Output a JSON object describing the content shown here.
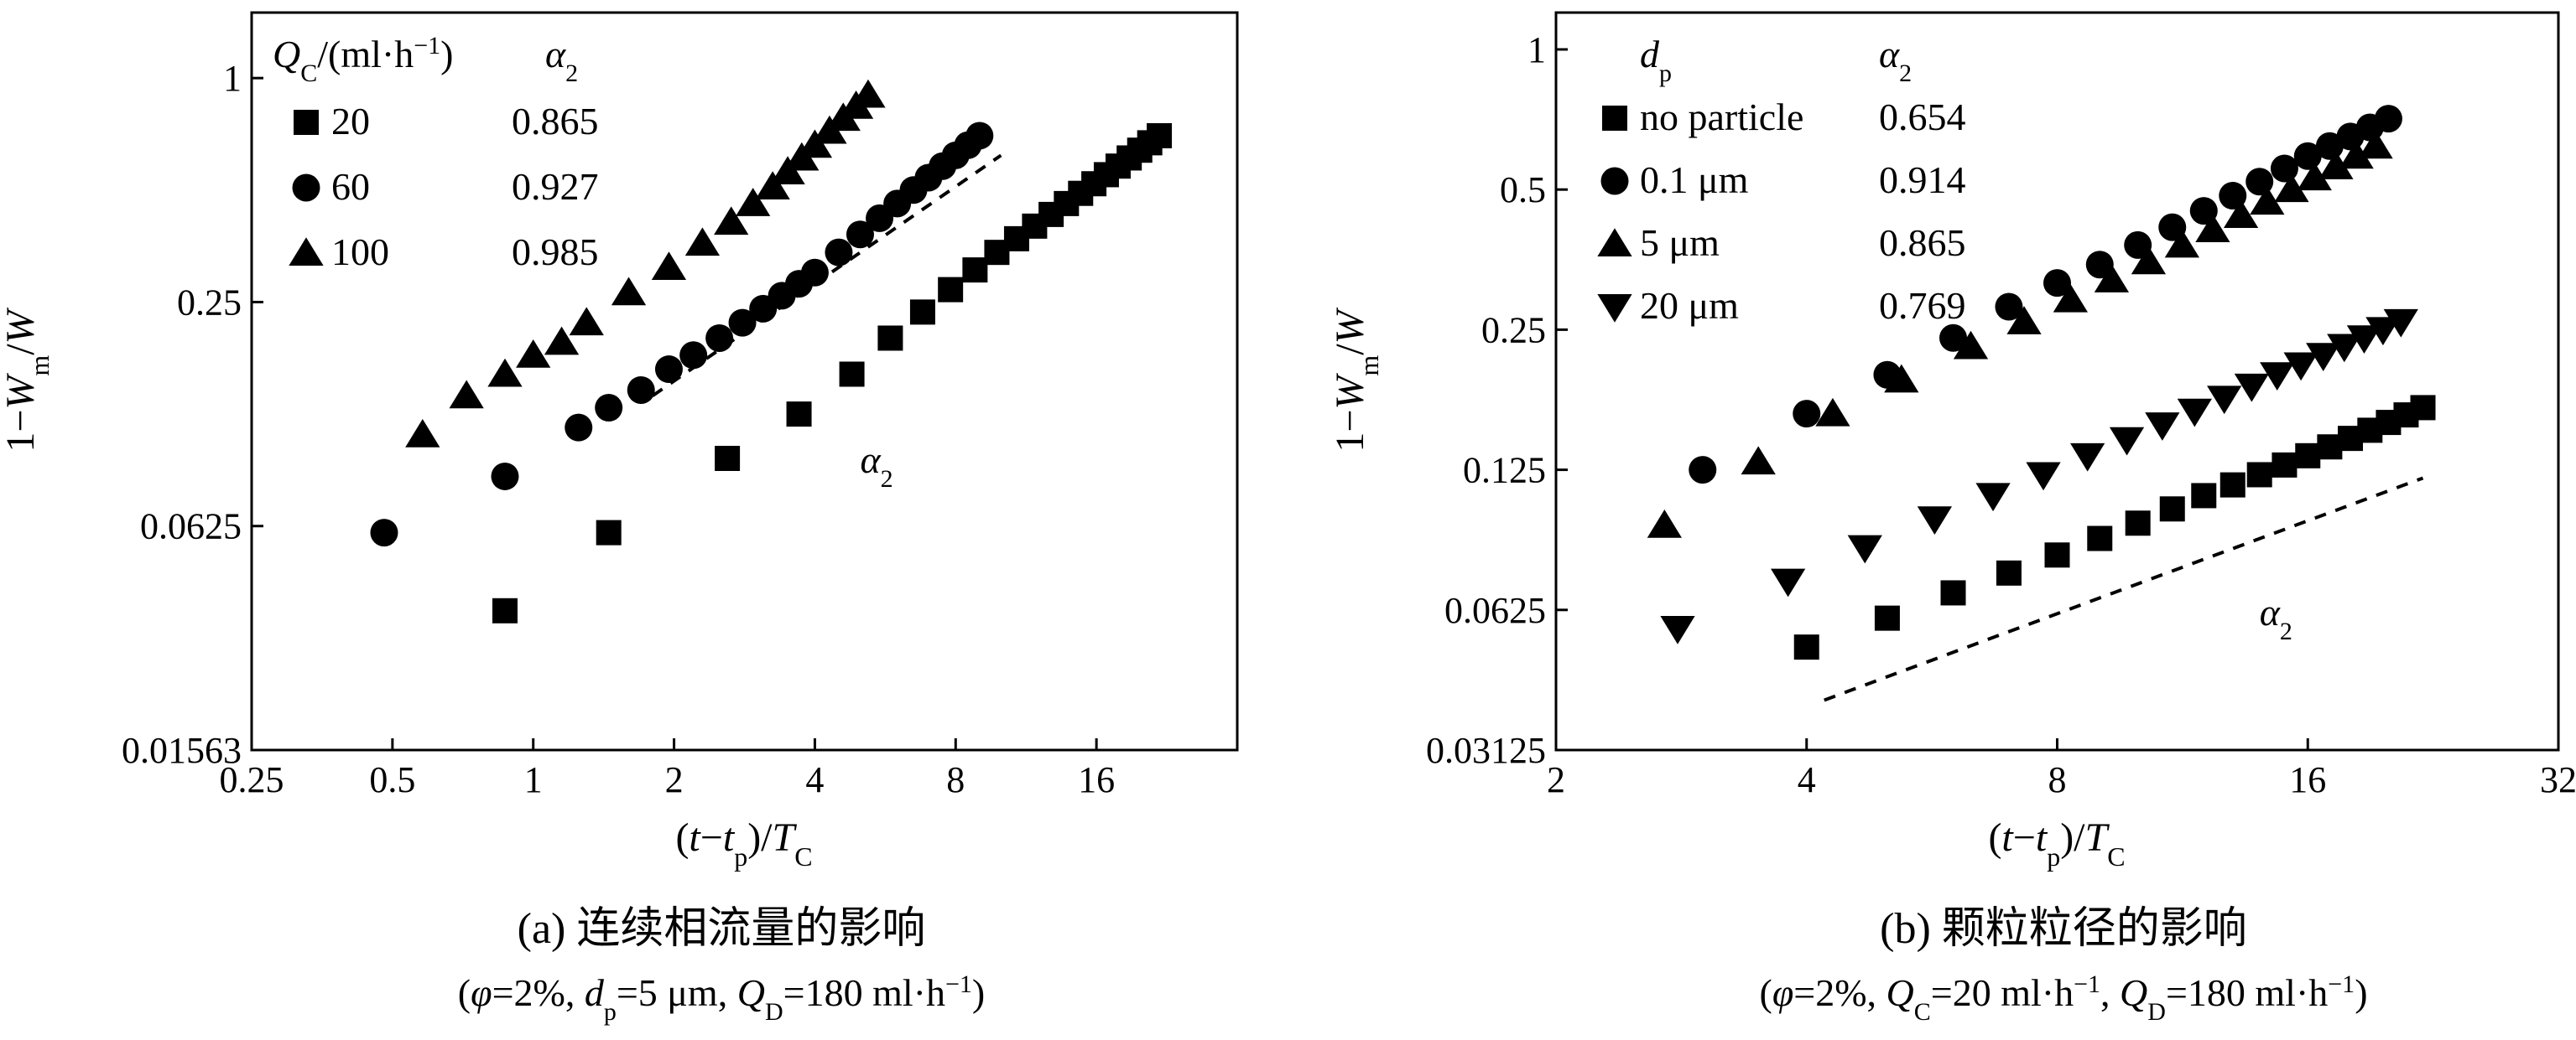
{
  "chart_data": [
    {
      "type": "scatter",
      "panel": "a",
      "x_scale": "log2",
      "y_scale": "log2",
      "xlim": [
        0.25,
        32
      ],
      "ylim": [
        0.015625,
        1.5
      ],
      "x_ticks": [
        0.25,
        0.5,
        1,
        2,
        4,
        8,
        16
      ],
      "x_tick_labels": [
        "0.25",
        "0.5",
        "1",
        "2",
        "4",
        "8",
        "16"
      ],
      "y_ticks": [
        0.015625,
        0.0625,
        0.25,
        1
      ],
      "y_tick_labels": [
        "0.01563",
        "0.0625",
        "0.25",
        "1"
      ],
      "xlabel": "(t−tp)/TC",
      "ylabel": "1−Wm/W",
      "legend_header": [
        "QC/(ml·h−1)",
        "α2"
      ],
      "series": [
        {
          "name": "20",
          "alpha2": "0.865",
          "marker": "square",
          "x": [
            0.87,
            1.45,
            2.6,
            3.7,
            4.8,
            5.8,
            6.8,
            7.8,
            8.8,
            9.8,
            10.8,
            11.8,
            12.8,
            13.8,
            14.8,
            15.8,
            16.8,
            17.8,
            18.8,
            19.8,
            20.8,
            21.8
          ],
          "y": [
            0.037,
            0.06,
            0.095,
            0.125,
            0.16,
            0.2,
            0.235,
            0.27,
            0.305,
            0.34,
            0.37,
            0.4,
            0.43,
            0.46,
            0.49,
            0.52,
            0.55,
            0.58,
            0.61,
            0.64,
            0.67,
            0.7
          ]
        },
        {
          "name": "60",
          "alpha2": "0.927",
          "marker": "circle",
          "x": [
            0.48,
            0.87,
            1.25,
            1.45,
            1.7,
            1.95,
            2.2,
            2.5,
            2.8,
            3.1,
            3.4,
            3.7,
            4,
            4.5,
            5,
            5.5,
            6,
            6.5,
            7,
            7.5,
            8,
            8.5,
            9
          ],
          "y": [
            0.06,
            0.085,
            0.115,
            0.13,
            0.145,
            0.165,
            0.18,
            0.2,
            0.22,
            0.24,
            0.26,
            0.28,
            0.3,
            0.34,
            0.38,
            0.42,
            0.46,
            0.5,
            0.54,
            0.58,
            0.62,
            0.66,
            0.7
          ]
        },
        {
          "name": "100",
          "alpha2": "0.985",
          "marker": "triangle",
          "x": [
            0.58,
            0.72,
            0.87,
            1.0,
            1.15,
            1.3,
            1.6,
            1.95,
            2.3,
            2.65,
            2.95,
            3.25,
            3.5,
            3.75,
            4.0,
            4.3,
            4.6,
            4.9,
            5.2
          ],
          "y": [
            0.11,
            0.14,
            0.16,
            0.18,
            0.195,
            0.22,
            0.265,
            0.31,
            0.36,
            0.41,
            0.46,
            0.51,
            0.56,
            0.61,
            0.66,
            0.72,
            0.78,
            0.84,
            0.9
          ]
        }
      ],
      "reference_line": {
        "x": [
          1.8,
          10.0
        ],
        "y": [
          0.14,
          0.62
        ],
        "label": "α2",
        "label_pos": [
          5.0,
          0.087
        ]
      }
    },
    {
      "type": "scatter",
      "panel": "b",
      "x_scale": "log2",
      "y_scale": "log2",
      "xlim": [
        2,
        32
      ],
      "ylim": [
        0.03125,
        1.2
      ],
      "x_ticks": [
        2,
        4,
        8,
        16,
        32
      ],
      "x_tick_labels": [
        "2",
        "4",
        "8",
        "16",
        "32"
      ],
      "y_ticks": [
        0.03125,
        0.0625,
        0.125,
        0.25,
        0.5,
        1
      ],
      "y_tick_labels": [
        "0.03125",
        "0.0625",
        "0.125",
        "0.25",
        "0.5",
        "1"
      ],
      "xlabel": "(t−tp)/TC",
      "ylabel": "1−Wm/W",
      "legend_header": [
        "dp",
        "α2"
      ],
      "series": [
        {
          "name": "no particle",
          "alpha2": "0.654",
          "marker": "square",
          "x": [
            4.0,
            5.0,
            6.0,
            7.0,
            8.0,
            9.0,
            10.0,
            11.0,
            12.0,
            13.0,
            14.0,
            15.0,
            16.0,
            17.0,
            18.0,
            19.0,
            20.0,
            21.0,
            22.0
          ],
          "y": [
            0.052,
            0.06,
            0.068,
            0.075,
            0.082,
            0.089,
            0.096,
            0.103,
            0.11,
            0.116,
            0.122,
            0.128,
            0.134,
            0.14,
            0.146,
            0.152,
            0.158,
            0.164,
            0.17
          ]
        },
        {
          "name": "0.1 μm",
          "alpha2": "0.914",
          "marker": "circle",
          "x": [
            3.0,
            4.0,
            5.0,
            6.0,
            7.0,
            8.0,
            9.0,
            10.0,
            11.0,
            12.0,
            13.0,
            14.0,
            15.0,
            16.0,
            17.0,
            18.0,
            19.0,
            20.0
          ],
          "y": [
            0.125,
            0.165,
            0.2,
            0.24,
            0.28,
            0.315,
            0.345,
            0.38,
            0.415,
            0.45,
            0.485,
            0.52,
            0.555,
            0.59,
            0.62,
            0.65,
            0.68,
            0.71
          ]
        },
        {
          "name": "5 μm",
          "alpha2": "0.865",
          "marker": "triangle",
          "x": [
            2.7,
            3.5,
            4.3,
            5.2,
            6.3,
            7.3,
            8.3,
            9.3,
            10.3,
            11.3,
            12.3,
            13.3,
            14.3,
            15.3,
            16.3,
            17.3,
            18.3,
            19.3
          ],
          "y": [
            0.095,
            0.13,
            0.165,
            0.195,
            0.23,
            0.26,
            0.29,
            0.32,
            0.35,
            0.38,
            0.41,
            0.44,
            0.47,
            0.5,
            0.53,
            0.56,
            0.59,
            0.62
          ]
        },
        {
          "name": "20 μm",
          "alpha2": "0.769",
          "marker": "triangle-down",
          "x": [
            2.8,
            3.8,
            4.7,
            5.7,
            6.7,
            7.7,
            8.7,
            9.7,
            10.7,
            11.7,
            12.7,
            13.7,
            14.7,
            15.7,
            16.7,
            17.7,
            18.7,
            19.7,
            20.7
          ],
          "y": [
            0.057,
            0.072,
            0.085,
            0.098,
            0.11,
            0.122,
            0.134,
            0.145,
            0.156,
            0.167,
            0.178,
            0.189,
            0.2,
            0.21,
            0.22,
            0.23,
            0.24,
            0.25,
            0.26
          ]
        }
      ],
      "reference_line": {
        "x": [
          4.2,
          22.0
        ],
        "y": [
          0.04,
          0.12
        ],
        "label": "α2",
        "label_pos": [
          14.0,
          0.058
        ]
      }
    }
  ],
  "captions": {
    "a": {
      "title": "(a) 连续相流量的影响",
      "subtitle": "(φ=2%, dp=5 μm, QD=180 ml·h−1)"
    },
    "b": {
      "title": "(b) 颗粒粒径的影响",
      "subtitle": "(φ=2%, QC=20 ml·h−1, QD=180 ml·h−1)"
    }
  }
}
